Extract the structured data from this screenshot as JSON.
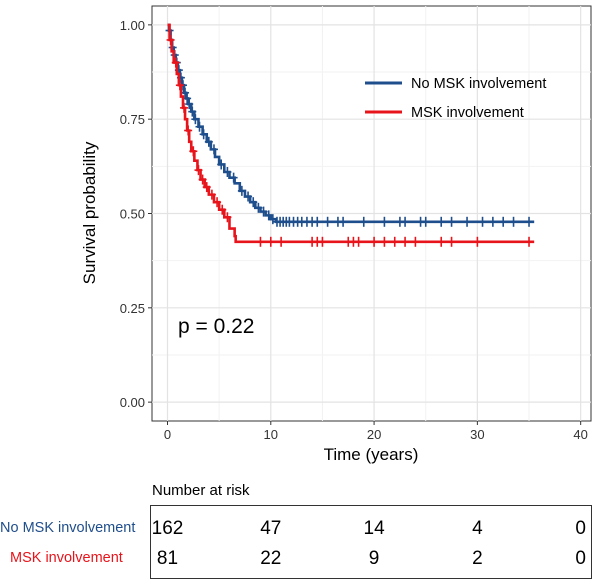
{
  "chart_data": {
    "type": "line",
    "subtype": "kaplan-meier",
    "xlabel": "Time (years)",
    "ylabel": "Survival probability",
    "xlim": [
      -1.5,
      41
    ],
    "ylim": [
      -0.05,
      1.05
    ],
    "x_ticks": [
      "0",
      "10",
      "20",
      "30",
      "40"
    ],
    "y_ticks": [
      "0.00",
      "0.25",
      "0.50",
      "0.75",
      "1.00"
    ],
    "grid": true,
    "legend_position": "top-right",
    "annotation": "p = 0.22",
    "series": [
      {
        "name": "No MSK involvement",
        "color": "#1f4e8c",
        "steps": [
          [
            0,
            1.0
          ],
          [
            0.15,
            0.985
          ],
          [
            0.3,
            0.96
          ],
          [
            0.45,
            0.94
          ],
          [
            0.6,
            0.92
          ],
          [
            0.8,
            0.9
          ],
          [
            1.0,
            0.88
          ],
          [
            1.2,
            0.86
          ],
          [
            1.4,
            0.84
          ],
          [
            1.6,
            0.82
          ],
          [
            1.8,
            0.805
          ],
          [
            2.0,
            0.79
          ],
          [
            2.3,
            0.77
          ],
          [
            2.6,
            0.75
          ],
          [
            3.0,
            0.73
          ],
          [
            3.4,
            0.71
          ],
          [
            3.8,
            0.69
          ],
          [
            4.2,
            0.67
          ],
          [
            4.6,
            0.65
          ],
          [
            5.0,
            0.63
          ],
          [
            5.5,
            0.61
          ],
          [
            6.0,
            0.595
          ],
          [
            6.5,
            0.58
          ],
          [
            7.0,
            0.56
          ],
          [
            7.5,
            0.545
          ],
          [
            8.0,
            0.53
          ],
          [
            8.5,
            0.515
          ],
          [
            9.0,
            0.505
          ],
          [
            9.5,
            0.495
          ],
          [
            10.0,
            0.485
          ],
          [
            10.5,
            0.478
          ],
          [
            35.5,
            0.478
          ]
        ],
        "censor_times": [
          0.2,
          0.5,
          0.7,
          0.9,
          1.1,
          1.3,
          1.5,
          1.7,
          1.9,
          2.1,
          2.4,
          2.7,
          3.1,
          3.5,
          4.0,
          4.5,
          5.2,
          5.8,
          6.4,
          7.2,
          7.8,
          8.3,
          8.8,
          9.3,
          9.8,
          10.2,
          10.6,
          10.9,
          11.2,
          11.5,
          11.8,
          12.2,
          12.6,
          13.0,
          13.5,
          14.0,
          14.5,
          15.5,
          16.5,
          17.0,
          19.0,
          21.0,
          22.5,
          23.0,
          24.5,
          25.0,
          26.5,
          27.5,
          29.0,
          30.5,
          31.5,
          32.5,
          33.5,
          35.0
        ]
      },
      {
        "name": "MSK involvement",
        "color": "#e8141b",
        "steps": [
          [
            0,
            1.0
          ],
          [
            0.2,
            0.96
          ],
          [
            0.4,
            0.93
          ],
          [
            0.6,
            0.9
          ],
          [
            0.9,
            0.87
          ],
          [
            1.1,
            0.84
          ],
          [
            1.3,
            0.81
          ],
          [
            1.5,
            0.78
          ],
          [
            1.7,
            0.75
          ],
          [
            1.9,
            0.72
          ],
          [
            2.1,
            0.69
          ],
          [
            2.3,
            0.665
          ],
          [
            2.6,
            0.64
          ],
          [
            2.9,
            0.615
          ],
          [
            3.2,
            0.59
          ],
          [
            3.6,
            0.57
          ],
          [
            4.0,
            0.55
          ],
          [
            4.5,
            0.53
          ],
          [
            5.0,
            0.51
          ],
          [
            5.5,
            0.49
          ],
          [
            6.0,
            0.46
          ],
          [
            6.5,
            0.44
          ],
          [
            6.6,
            0.425
          ],
          [
            35.5,
            0.425
          ]
        ],
        "censor_times": [
          0.3,
          0.8,
          1.2,
          1.6,
          2.0,
          2.5,
          3.0,
          3.4,
          3.8,
          4.3,
          4.8,
          5.3,
          5.8,
          9.0,
          10.0,
          11.0,
          14.0,
          14.5,
          15.0,
          17.5,
          18.0,
          18.5,
          20.0,
          21.0,
          22.0,
          23.0,
          24.0,
          26.5,
          27.5,
          30.0,
          35.0
        ]
      }
    ]
  },
  "risk_table": {
    "title": "Number at risk",
    "rows": [
      {
        "label": "No MSK involvement",
        "color": "#1f4e8c",
        "values": [
          "162",
          "47",
          "14",
          "4",
          "0"
        ]
      },
      {
        "label": "MSK involvement",
        "color": "#e8141b",
        "values": [
          "81",
          "22",
          "9",
          "2",
          "0"
        ]
      }
    ]
  }
}
